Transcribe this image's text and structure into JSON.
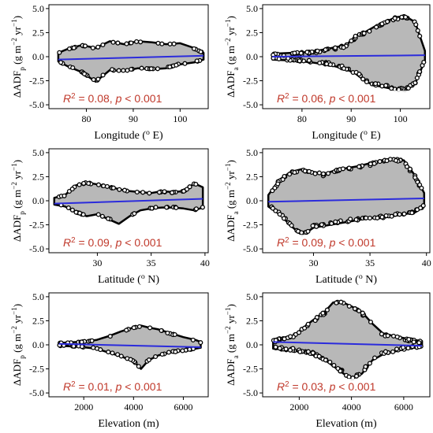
{
  "chart_data": [
    {
      "type": "scatter",
      "ylabel": "ΔADFp (g m−2 yr−1)",
      "ylabel_parts": [
        "ΔADF",
        "p",
        " (g m",
        "−2",
        " yr",
        "−1",
        ")"
      ],
      "xlabel": "Longitude (o E)",
      "xlabel_parts": [
        "Longitude (",
        "o",
        " E)"
      ],
      "xlim": [
        72,
        106
      ],
      "ylim": [
        -5.4,
        5.4
      ],
      "xticks": [
        80,
        90,
        100
      ],
      "yticks": [
        -5.0,
        -2.5,
        0.0,
        2.5,
        5.0
      ],
      "yticklabels": [
        "-5.0",
        "-2.5",
        "0.0",
        "2.5",
        "5.0"
      ],
      "annotation": {
        "r2": "0.08",
        "p": "< 0.001"
      },
      "annotation_text": [
        "R",
        "2",
        " = 0.08, ",
        "p",
        " < 0.001"
      ],
      "envelope": {
        "x": [
          74,
          76,
          79,
          82,
          85,
          88,
          91,
          94,
          97,
          100,
          103,
          105
        ],
        "upper": [
          0.4,
          0.8,
          1.2,
          0.9,
          1.6,
          1.3,
          1.6,
          1.5,
          1.3,
          1.4,
          0.9,
          0.4
        ],
        "lower": [
          -0.5,
          -1.0,
          -1.6,
          -2.6,
          -1.4,
          -1.5,
          -1.2,
          -1.3,
          -1.2,
          -0.8,
          -0.6,
          -0.3
        ]
      },
      "fit_line": {
        "x": [
          74,
          105
        ],
        "y": [
          -0.3,
          0.1
        ]
      },
      "colors": {
        "fill": "#b8b8b8",
        "points": "#000000",
        "fit": "#2b2bdc"
      }
    },
    {
      "type": "scatter",
      "ylabel": "ΔADFa (g m−2 yr−1)",
      "ylabel_parts": [
        "ΔADF",
        "a",
        " (g m",
        "−2",
        " yr",
        "−1",
        ")"
      ],
      "xlabel": "Longitude (o E)",
      "xlabel_parts": [
        "Longitude (",
        "o",
        " E)"
      ],
      "xlim": [
        72,
        106
      ],
      "ylim": [
        -5.4,
        5.4
      ],
      "xticks": [
        80,
        90,
        100
      ],
      "yticks": [
        -5.0,
        -2.5,
        0.0,
        2.5,
        5.0
      ],
      "yticklabels": [
        "-5.0",
        "-2.5",
        "0.0",
        "2.5",
        "5.0"
      ],
      "annotation": {
        "r2": "0.06",
        "p": "< 0.001"
      },
      "annotation_text": [
        "R",
        "2",
        " = 0.06, ",
        "p",
        " < 0.001"
      ],
      "envelope": {
        "x": [
          74,
          78,
          82,
          86,
          89,
          91,
          93,
          95,
          97,
          99,
          101,
          103,
          105
        ],
        "upper": [
          0.3,
          0.4,
          0.5,
          0.9,
          1.2,
          2.2,
          2.6,
          3.2,
          3.6,
          4.1,
          4.2,
          3.6,
          0.6
        ],
        "lower": [
          -0.3,
          -0.4,
          -0.6,
          -0.9,
          -1.3,
          -1.8,
          -2.6,
          -3.0,
          -3.2,
          -3.4,
          -3.6,
          -2.8,
          -0.4
        ]
      },
      "fit_line": {
        "x": [
          74,
          105
        ],
        "y": [
          0.0,
          0.15
        ]
      },
      "colors": {
        "fill": "#b8b8b8",
        "points": "#000000",
        "fit": "#2b2bdc"
      }
    },
    {
      "type": "scatter",
      "ylabel": "ΔADFp (g m−2 yr−1)",
      "ylabel_parts": [
        "ΔADF",
        "p",
        " (g m",
        "−2",
        " yr",
        "−1",
        ")"
      ],
      "xlabel": "Latitude (o N)",
      "xlabel_parts": [
        "Latitude (",
        "o",
        " N)"
      ],
      "xlim": [
        25.5,
        40.3
      ],
      "ylim": [
        -5.4,
        5.4
      ],
      "xticks": [
        30,
        35,
        40
      ],
      "yticks": [
        -5.0,
        -2.5,
        0.0,
        2.5,
        5.0
      ],
      "yticklabels": [
        "-5.0",
        "-2.5",
        "0.0",
        "2.5",
        "5.0"
      ],
      "annotation": {
        "r2": "0.09",
        "p": "< 0.001"
      },
      "annotation_text": [
        "R",
        "2",
        " = 0.09, ",
        "p",
        " < 0.001"
      ],
      "envelope": {
        "x": [
          26,
          27,
          28,
          29,
          30,
          31,
          32,
          33,
          34,
          35,
          36,
          37,
          38,
          39,
          39.8
        ],
        "upper": [
          0.3,
          0.6,
          1.6,
          1.9,
          1.7,
          1.5,
          1.2,
          1.0,
          0.9,
          0.8,
          1.0,
          0.9,
          1.0,
          1.8,
          1.4
        ],
        "lower": [
          -0.4,
          -0.6,
          -1.2,
          -1.6,
          -1.4,
          -1.9,
          -2.4,
          -1.6,
          -1.0,
          -0.8,
          -0.7,
          -0.7,
          -0.8,
          -1.0,
          -0.7
        ]
      },
      "fit_line": {
        "x": [
          26,
          39.8
        ],
        "y": [
          -0.3,
          0.2
        ]
      },
      "colors": {
        "fill": "#b8b8b8",
        "points": "#000000",
        "fit": "#2b2bdc"
      }
    },
    {
      "type": "scatter",
      "ylabel": "ΔADFa (g m−2 yr−1)",
      "ylabel_parts": [
        "ΔADF",
        "a",
        " (g m",
        "−2",
        " yr",
        "−1",
        ")"
      ],
      "xlabel": "Latitude (o N)",
      "xlabel_parts": [
        "Latitude (",
        "o",
        " N)"
      ],
      "xlim": [
        25.5,
        40.3
      ],
      "ylim": [
        -5.4,
        5.4
      ],
      "xticks": [
        30,
        35,
        40
      ],
      "yticks": [
        -5.0,
        -2.5,
        0.0,
        2.5,
        5.0
      ],
      "yticklabels": [
        "-5.0",
        "-2.5",
        "0.0",
        "2.5",
        "5.0"
      ],
      "annotation": {
        "r2": "0.09",
        "p": "< 0.001"
      },
      "annotation_text": [
        "R",
        "2",
        " = 0.09, ",
        "p",
        " < 0.001"
      ],
      "envelope": {
        "x": [
          26,
          27,
          28,
          29,
          30,
          31,
          32,
          33,
          34,
          35,
          36,
          37,
          38,
          39,
          39.8
        ],
        "upper": [
          0.6,
          2.2,
          3.0,
          3.3,
          3.0,
          2.8,
          3.2,
          3.4,
          3.6,
          3.9,
          4.2,
          4.4,
          4.2,
          2.6,
          0.8
        ],
        "lower": [
          -0.6,
          -1.4,
          -2.6,
          -3.6,
          -2.8,
          -2.6,
          -2.4,
          -2.2,
          -2.0,
          -1.8,
          -1.8,
          -1.6,
          -1.4,
          -1.2,
          -0.6
        ]
      },
      "fit_line": {
        "x": [
          26,
          39.8
        ],
        "y": [
          -0.1,
          0.25
        ]
      },
      "colors": {
        "fill": "#b8b8b8",
        "points": "#000000",
        "fit": "#2b2bdc"
      }
    },
    {
      "type": "scatter",
      "ylabel": "ΔADFp (g m−2 yr−1)",
      "ylabel_parts": [
        "ΔADF",
        "p",
        " (g m",
        "−2",
        " yr",
        "−1",
        ")"
      ],
      "xlabel": "Elevation (m)",
      "xlabel_parts": [
        "Elevation (m)",
        "",
        ""
      ],
      "xlim": [
        600,
        7000
      ],
      "ylim": [
        -5.4,
        5.4
      ],
      "xticks": [
        2000,
        4000,
        6000
      ],
      "yticks": [
        -5.0,
        -2.5,
        0.0,
        2.5,
        5.0
      ],
      "yticklabels": [
        "-5.0",
        "-2.5",
        "0.0",
        "2.5",
        "5.0"
      ],
      "annotation": {
        "r2": "0.01",
        "p": "< 0.001"
      },
      "annotation_text": [
        "R",
        "2",
        " = 0.01, ",
        "p",
        " < 0.001"
      ],
      "envelope": {
        "x": [
          1000,
          1800,
          2500,
          3000,
          3500,
          4000,
          4300,
          4600,
          5000,
          5500,
          6000,
          6500,
          6700
        ],
        "upper": [
          0.2,
          0.3,
          0.5,
          0.9,
          1.4,
          1.8,
          2.0,
          1.8,
          1.6,
          1.2,
          0.8,
          0.5,
          0.3
        ],
        "lower": [
          -0.1,
          -0.2,
          -0.4,
          -0.8,
          -1.2,
          -1.7,
          -2.5,
          -1.6,
          -1.1,
          -0.8,
          -0.6,
          -0.4,
          -0.3
        ]
      },
      "fit_line": {
        "x": [
          1000,
          6700
        ],
        "y": [
          0.1,
          -0.25
        ]
      },
      "colors": {
        "fill": "#b8b8b8",
        "points": "#000000",
        "fit": "#2b2bdc"
      }
    },
    {
      "type": "scatter",
      "ylabel": "ΔADFa (g m−2 yr−1)",
      "ylabel_parts": [
        "ΔADF",
        "a",
        " (g m",
        "−2",
        " yr",
        "−1",
        ")"
      ],
      "xlabel": "Elevation (m)",
      "xlabel_parts": [
        "Elevation (m)",
        "",
        ""
      ],
      "xlim": [
        600,
        7000
      ],
      "ylim": [
        -5.4,
        5.4
      ],
      "xticks": [
        2000,
        4000,
        6000
      ],
      "yticks": [
        -5.0,
        -2.5,
        0.0,
        2.5,
        5.0
      ],
      "yticklabels": [
        "-5.0",
        "-2.5",
        "0.0",
        "2.5",
        "5.0"
      ],
      "annotation": {
        "r2": "0.03",
        "p": "< 0.001"
      },
      "annotation_text": [
        "R",
        "2",
        " = 0.03, ",
        "p",
        " < 0.001"
      ],
      "envelope": {
        "x": [
          1000,
          1800,
          2500,
          3000,
          3300,
          3600,
          4000,
          4400,
          4800,
          5200,
          5800,
          6400,
          6700
        ],
        "upper": [
          0.5,
          1.0,
          2.5,
          3.5,
          4.4,
          4.5,
          4.0,
          3.4,
          2.2,
          1.2,
          0.8,
          0.5,
          0.4
        ],
        "lower": [
          -0.4,
          -0.6,
          -1.0,
          -1.6,
          -2.2,
          -2.8,
          -3.6,
          -3.0,
          -1.6,
          -1.0,
          -0.6,
          -0.3,
          -0.2
        ]
      },
      "fit_line": {
        "x": [
          1000,
          6700
        ],
        "y": [
          0.3,
          -0.1
        ]
      },
      "colors": {
        "fill": "#b8b8b8",
        "points": "#000000",
        "fit": "#2b2bdc"
      }
    }
  ]
}
